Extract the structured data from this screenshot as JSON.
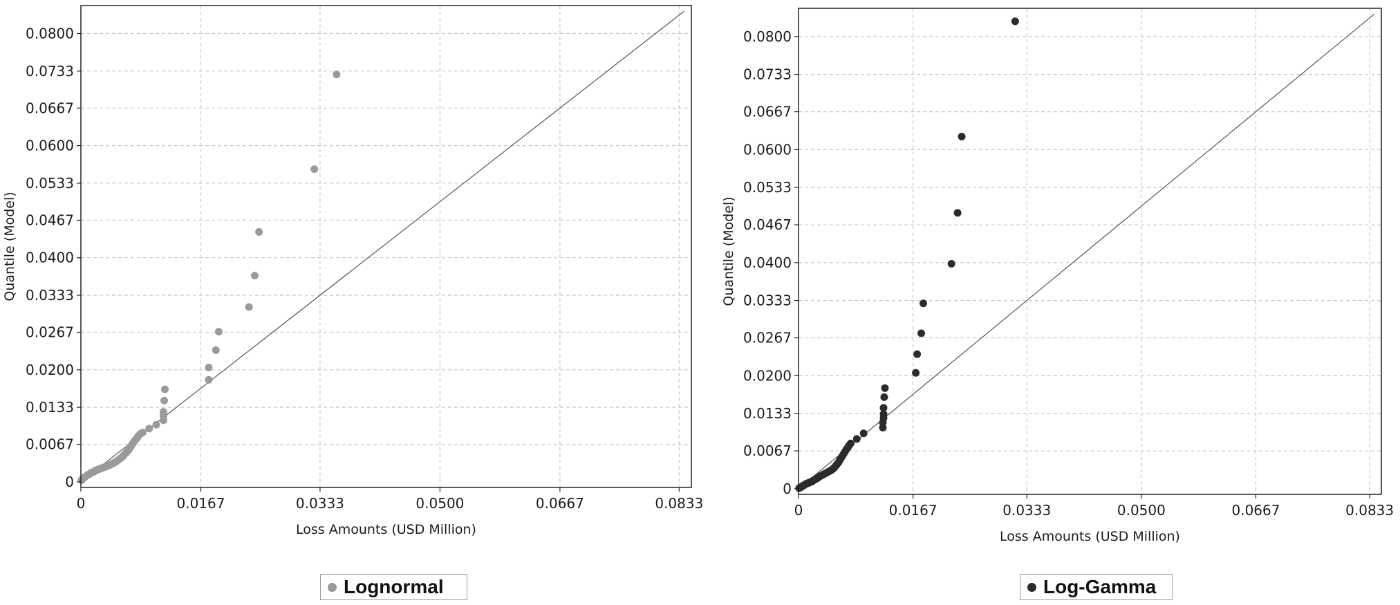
{
  "chart_data": [
    {
      "type": "scatter",
      "title": "",
      "xlabel": "Loss Amounts (USD Million)",
      "ylabel": "Quantile (Model)",
      "xlim": [
        0,
        0.085
      ],
      "ylim": [
        -0.001,
        0.085
      ],
      "x_ticks": [
        0,
        0.0167,
        0.0333,
        0.05,
        0.0667,
        0.0833
      ],
      "x_tick_labels": [
        "0",
        "0.0167",
        "0.0333",
        "0.0500",
        "0.0667",
        "0.0833"
      ],
      "y_ticks": [
        0,
        0.0067,
        0.0133,
        0.02,
        0.0267,
        0.0333,
        0.04,
        0.0467,
        0.0533,
        0.06,
        0.0667,
        0.0733,
        0.08
      ],
      "y_tick_labels": [
        "0",
        "0.0067",
        "0.0133",
        "0.0200",
        "0.0267",
        "0.0333",
        "0.0400",
        "0.0467",
        "0.0533",
        "0.0600",
        "0.0667",
        "0.0733",
        "0.0800"
      ],
      "grid": true,
      "reference_line": [
        [
          0,
          0
        ],
        [
          0.084,
          0.084
        ]
      ],
      "point_color": "#9a9a9a",
      "legend": {
        "label": "Lognormal",
        "position": "bottom-center"
      },
      "series": [
        {
          "name": "Lognormal",
          "x": [
            0.0001,
            0.0002,
            0.0004,
            0.0006,
            0.0008,
            0.001,
            0.0012,
            0.0014,
            0.0016,
            0.0018,
            0.002,
            0.0022,
            0.0024,
            0.0026,
            0.0028,
            0.003,
            0.0032,
            0.0035,
            0.0038,
            0.004,
            0.0043,
            0.0046,
            0.0049,
            0.0052,
            0.0055,
            0.0058,
            0.006,
            0.0063,
            0.0066,
            0.0068,
            0.007,
            0.0072,
            0.0074,
            0.0076,
            0.0078,
            0.008,
            0.0083,
            0.0086,
            0.0095,
            0.0105,
            0.0115,
            0.0115,
            0.0115,
            0.0116,
            0.0117,
            0.0178,
            0.0178,
            0.0188,
            0.0192,
            0.0234,
            0.0242,
            0.0248,
            0.0325,
            0.0356
          ],
          "y": [
            0.0003,
            0.0005,
            0.0007,
            0.0009,
            0.0011,
            0.0013,
            0.0014,
            0.0016,
            0.0017,
            0.0018,
            0.002,
            0.0021,
            0.0022,
            0.0023,
            0.0024,
            0.0025,
            0.0026,
            0.0027,
            0.0029,
            0.003,
            0.0032,
            0.0034,
            0.0036,
            0.0039,
            0.0042,
            0.0045,
            0.0048,
            0.0052,
            0.0056,
            0.006,
            0.0064,
            0.0068,
            0.0072,
            0.0075,
            0.0078,
            0.0082,
            0.0086,
            0.0088,
            0.0095,
            0.0102,
            0.011,
            0.0118,
            0.0125,
            0.0145,
            0.0165,
            0.0182,
            0.0204,
            0.0235,
            0.0268,
            0.0312,
            0.0368,
            0.0446,
            0.0558,
            0.0727
          ]
        }
      ]
    },
    {
      "type": "scatter",
      "title": "",
      "xlabel": "Loss Amounts (USD Million)",
      "ylabel": "Quantile (Model)",
      "xlim": [
        0,
        0.085
      ],
      "ylim": [
        -0.001,
        0.085
      ],
      "x_ticks": [
        0,
        0.0167,
        0.0333,
        0.05,
        0.0667,
        0.0833
      ],
      "x_tick_labels": [
        "0",
        "0.0167",
        "0.0333",
        "0.0500",
        "0.0667",
        "0.0833"
      ],
      "y_ticks": [
        0,
        0.0067,
        0.0133,
        0.02,
        0.0267,
        0.0333,
        0.04,
        0.0467,
        0.0533,
        0.06,
        0.0667,
        0.0733,
        0.08
      ],
      "y_tick_labels": [
        "0",
        "0.0067",
        "0.0133",
        "0.0200",
        "0.0267",
        "0.0333",
        "0.0400",
        "0.0467",
        "0.0533",
        "0.0600",
        "0.0667",
        "0.0733",
        "0.0800"
      ],
      "grid": true,
      "reference_line": [
        [
          0,
          0
        ],
        [
          0.084,
          0.084
        ]
      ],
      "point_color": "#2b2b2b",
      "legend": {
        "label": "Log-Gamma",
        "position": "bottom-center"
      },
      "series": [
        {
          "name": "Log-Gamma",
          "x": [
            0.0001,
            0.0002,
            0.0004,
            0.0006,
            0.0008,
            0.001,
            0.0012,
            0.0014,
            0.0016,
            0.0018,
            0.002,
            0.0022,
            0.0025,
            0.0028,
            0.003,
            0.0033,
            0.0036,
            0.0039,
            0.0042,
            0.0045,
            0.0048,
            0.005,
            0.0052,
            0.0054,
            0.0056,
            0.0058,
            0.006,
            0.0062,
            0.0064,
            0.0066,
            0.0068,
            0.007,
            0.0072,
            0.0074,
            0.0076,
            0.0085,
            0.0095,
            0.0123,
            0.0123,
            0.0124,
            0.0124,
            0.0124,
            0.0125,
            0.0126,
            0.0171,
            0.0173,
            0.0179,
            0.0182,
            0.0223,
            0.0232,
            0.0238,
            0.0316
          ],
          "y": [
            0.0001,
            0.0002,
            0.0003,
            0.0005,
            0.0006,
            0.0008,
            0.0009,
            0.001,
            0.0011,
            0.0012,
            0.0013,
            0.0015,
            0.0017,
            0.0019,
            0.0021,
            0.0023,
            0.0025,
            0.0027,
            0.0029,
            0.0031,
            0.0033,
            0.0035,
            0.0037,
            0.004,
            0.0043,
            0.0046,
            0.005,
            0.0054,
            0.0058,
            0.0062,
            0.0066,
            0.007,
            0.0073,
            0.0077,
            0.008,
            0.0088,
            0.0098,
            0.0108,
            0.0117,
            0.0125,
            0.0132,
            0.0143,
            0.0162,
            0.0178,
            0.0205,
            0.0238,
            0.0275,
            0.0328,
            0.0398,
            0.0488,
            0.0623,
            0.0827
          ]
        }
      ]
    }
  ]
}
